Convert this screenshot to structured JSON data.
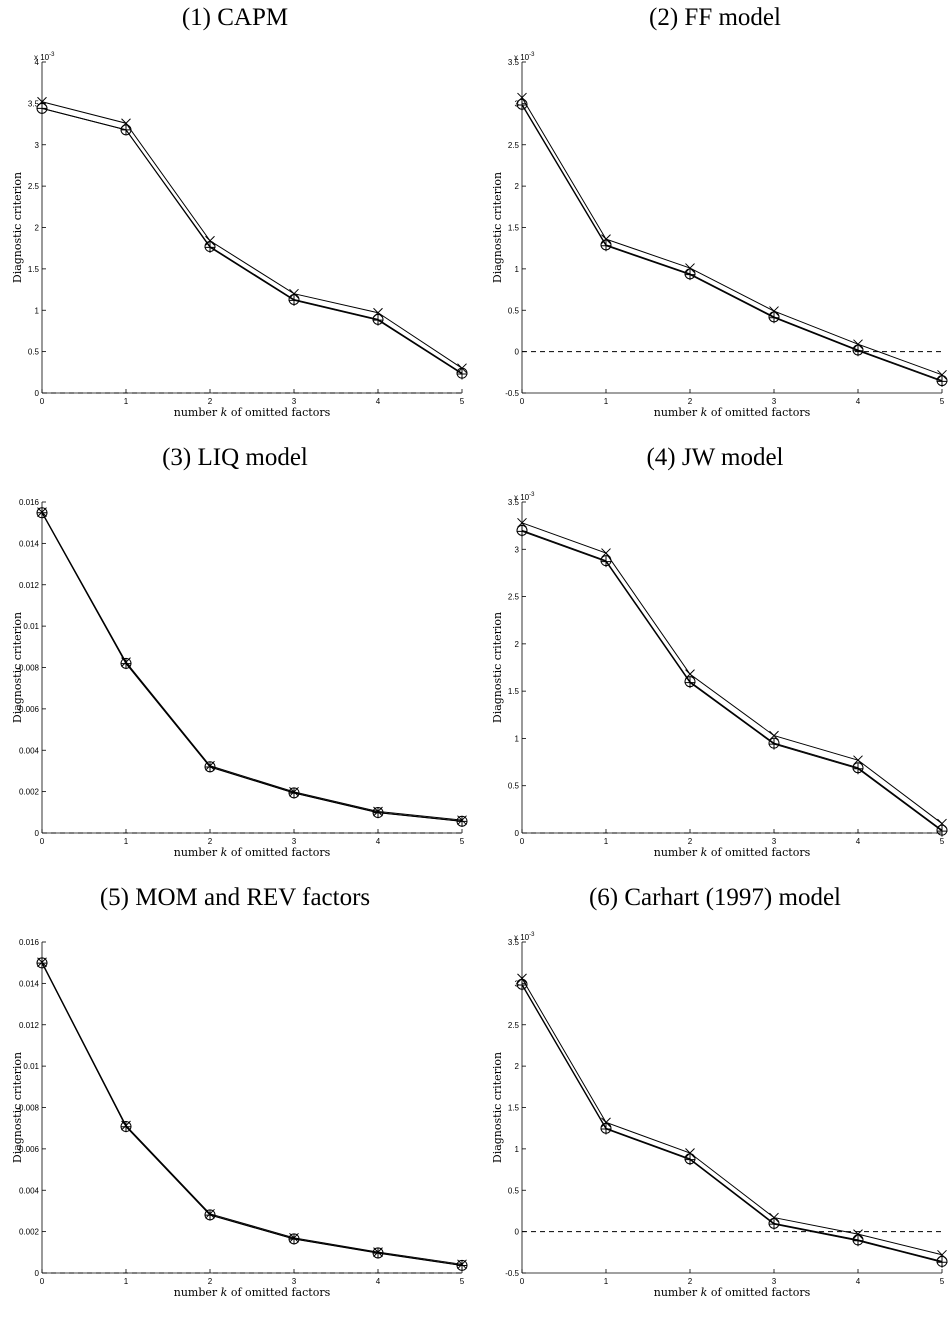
{
  "chart_data": [
    {
      "type": "line",
      "title": "(1) CAPM",
      "xlabel": "number k of omitted factors",
      "ylabel": "Diagnostic criterion",
      "exponent_label": "x 10",
      "exponent_power": "-3",
      "x": [
        0,
        1,
        2,
        3,
        4,
        5
      ],
      "xlim": [
        0,
        5
      ],
      "ylim": [
        0,
        4
      ],
      "yticks": [
        0,
        0.5,
        1,
        1.5,
        2,
        2.5,
        3,
        3.5,
        4
      ],
      "series": [
        {
          "marker": "x",
          "values": [
            3.52,
            3.26,
            1.84,
            1.2,
            0.97,
            0.3
          ]
        },
        {
          "marker": "o",
          "values": [
            3.44,
            3.18,
            1.77,
            1.13,
            0.89,
            0.24
          ]
        },
        {
          "marker": "+",
          "values": [
            3.44,
            3.18,
            1.76,
            1.12,
            0.88,
            0.23
          ]
        }
      ],
      "zero_line": true
    },
    {
      "type": "line",
      "title": "(2) FF model",
      "xlabel": "number k of omitted factors",
      "ylabel": "Diagnostic criterion",
      "exponent_label": "x 10",
      "exponent_power": "-3",
      "x": [
        0,
        1,
        2,
        3,
        4,
        5
      ],
      "xlim": [
        0,
        5
      ],
      "ylim": [
        -0.5,
        3.5
      ],
      "yticks": [
        -0.5,
        0,
        0.5,
        1,
        1.5,
        2,
        2.5,
        3,
        3.5
      ],
      "series": [
        {
          "marker": "x",
          "values": [
            3.07,
            1.36,
            1.01,
            0.49,
            0.09,
            -0.28
          ]
        },
        {
          "marker": "o",
          "values": [
            2.99,
            1.29,
            0.94,
            0.42,
            0.02,
            -0.35
          ]
        },
        {
          "marker": "+",
          "values": [
            2.98,
            1.28,
            0.93,
            0.41,
            0.01,
            -0.36
          ]
        }
      ],
      "zero_line": true
    },
    {
      "type": "line",
      "title": "(3) LIQ model",
      "xlabel": "number k of omitted factors",
      "ylabel": "Diagnostic criterion",
      "x": [
        0,
        1,
        2,
        3,
        4,
        5
      ],
      "xlim": [
        0,
        5
      ],
      "ylim": [
        0,
        0.016
      ],
      "yticks": [
        0,
        0.002,
        0.004,
        0.006,
        0.008,
        0.01,
        0.012,
        0.014,
        0.016
      ],
      "series": [
        {
          "marker": "x",
          "values": [
            0.01551,
            0.00826,
            0.00325,
            0.00199,
            0.00104,
            0.00062
          ]
        },
        {
          "marker": "o",
          "values": [
            0.01548,
            0.0082,
            0.0032,
            0.00194,
            0.00099,
            0.00057
          ]
        },
        {
          "marker": "+",
          "values": [
            0.01548,
            0.00819,
            0.00319,
            0.00193,
            0.00098,
            0.00056
          ]
        }
      ],
      "zero_line": true
    },
    {
      "type": "line",
      "title": "(4) JW model",
      "xlabel": "number k of omitted factors",
      "ylabel": "Diagnostic criterion",
      "exponent_label": "x 10",
      "exponent_power": "-3",
      "x": [
        0,
        1,
        2,
        3,
        4,
        5
      ],
      "xlim": [
        0,
        5
      ],
      "ylim": [
        0,
        3.5
      ],
      "yticks": [
        0,
        0.5,
        1,
        1.5,
        2,
        2.5,
        3,
        3.5
      ],
      "series": [
        {
          "marker": "x",
          "values": [
            3.28,
            2.96,
            1.68,
            1.03,
            0.77,
            0.1
          ]
        },
        {
          "marker": "o",
          "values": [
            3.2,
            2.88,
            1.6,
            0.95,
            0.69,
            0.03
          ]
        },
        {
          "marker": "+",
          "values": [
            3.19,
            2.87,
            1.59,
            0.94,
            0.68,
            0.02
          ]
        }
      ],
      "zero_line": true
    },
    {
      "type": "line",
      "title": "(5) MOM and REV factors",
      "xlabel": "number k of omitted factors",
      "ylabel": "Diagnostic criterion",
      "x": [
        0,
        1,
        2,
        3,
        4,
        5
      ],
      "xlim": [
        0,
        5
      ],
      "ylim": [
        0,
        0.016
      ],
      "yticks": [
        0,
        0.002,
        0.004,
        0.006,
        0.008,
        0.01,
        0.012,
        0.014,
        0.016
      ],
      "series": [
        {
          "marker": "x",
          "values": [
            0.01502,
            0.00713,
            0.00286,
            0.0017,
            0.00101,
            0.00042
          ]
        },
        {
          "marker": "o",
          "values": [
            0.01499,
            0.00708,
            0.00281,
            0.00165,
            0.00097,
            0.00037
          ]
        },
        {
          "marker": "+",
          "values": [
            0.01498,
            0.00707,
            0.0028,
            0.00164,
            0.00096,
            0.00036
          ]
        }
      ],
      "zero_line": true
    },
    {
      "type": "line",
      "title": "(6) Carhart (1997) model",
      "xlabel": "number k of omitted factors",
      "ylabel": "Diagnostic criterion",
      "exponent_label": "x 10",
      "exponent_power": "-3",
      "x": [
        0,
        1,
        2,
        3,
        4,
        5
      ],
      "xlim": [
        0,
        5
      ],
      "ylim": [
        -0.5,
        3.5
      ],
      "yticks": [
        -0.5,
        0,
        0.5,
        1,
        1.5,
        2,
        2.5,
        3,
        3.5
      ],
      "series": [
        {
          "marker": "x",
          "values": [
            3.06,
            1.32,
            0.95,
            0.17,
            -0.03,
            -0.28
          ]
        },
        {
          "marker": "o",
          "values": [
            2.99,
            1.25,
            0.88,
            0.1,
            -0.1,
            -0.36
          ]
        },
        {
          "marker": "+",
          "values": [
            2.98,
            1.24,
            0.87,
            0.09,
            -0.11,
            -0.37
          ]
        }
      ],
      "zero_line": true
    }
  ]
}
